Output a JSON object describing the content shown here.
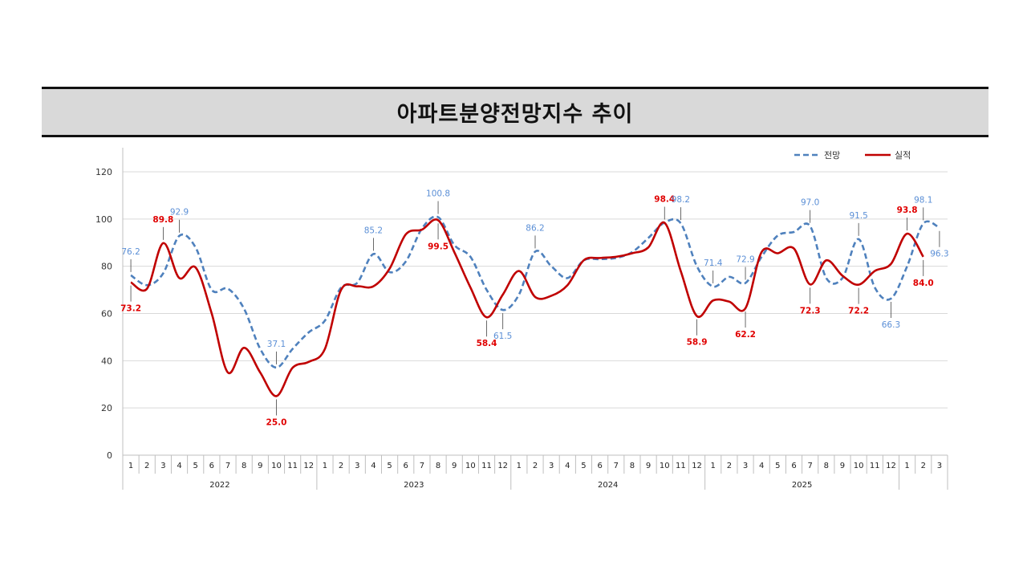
{
  "title": "아파트분양전망지수 추이",
  "chart_data": {
    "type": "line",
    "title": "",
    "xlabel": "",
    "ylabel": "",
    "ylim": [
      0,
      120
    ],
    "yticks": [
      0,
      20,
      40,
      60,
      80,
      100,
      120
    ],
    "grid": true,
    "legend_position": "top-right",
    "groups": [
      {
        "label": "2022",
        "months": [
          "1",
          "2",
          "3",
          "4",
          "5",
          "6",
          "7",
          "8",
          "9",
          "10",
          "11",
          "12"
        ]
      },
      {
        "label": "2023",
        "months": [
          "1",
          "2",
          "3",
          "4",
          "5",
          "6",
          "7",
          "8",
          "9",
          "10",
          "11",
          "12"
        ]
      },
      {
        "label": "2024",
        "months": [
          "1",
          "2",
          "3",
          "4",
          "5",
          "6",
          "7",
          "8",
          "9",
          "10",
          "11",
          "12"
        ]
      },
      {
        "label": "2025",
        "months": [
          "1",
          "2",
          "3",
          "4",
          "5",
          "6",
          "7",
          "8",
          "9",
          "10",
          "11",
          "12"
        ]
      },
      {
        "label": "",
        "months": [
          "1",
          "2",
          "3"
        ]
      }
    ],
    "series": [
      {
        "name": "전망",
        "color": "#4f81bd",
        "style": "dashed",
        "values": [
          76.2,
          72,
          77,
          92.9,
          88,
          70,
          70.5,
          62,
          45,
          37.1,
          45,
          52,
          57,
          71,
          73,
          85.2,
          77.5,
          82,
          96,
          100.8,
          89,
          84,
          70,
          61.5,
          68,
          86.2,
          80,
          75,
          82.5,
          83,
          83.5,
          86,
          92,
          98.5,
          98.2,
          80,
          71.4,
          75.5,
          72.9,
          84,
          93,
          94.5,
          97.0,
          75,
          75,
          91.5,
          71,
          66.3,
          80,
          98.1,
          96.3
        ]
      },
      {
        "name": "실적",
        "color": "#c00000",
        "style": "solid",
        "values": [
          73.2,
          70.5,
          89.8,
          75,
          79.5,
          60,
          35,
          45.5,
          35,
          25.0,
          37,
          39.5,
          45,
          70,
          71.5,
          71.5,
          79,
          93.5,
          95.5,
          99.5,
          86,
          71,
          58.4,
          68,
          78,
          67,
          67.5,
          72,
          82.5,
          83.5,
          84,
          85.5,
          88,
          98.4,
          78,
          58.9,
          65.5,
          65,
          62.2,
          86,
          85.5,
          87.5,
          72.3,
          82.5,
          76,
          72.2,
          78,
          81,
          93.8,
          84.0
        ]
      }
    ],
    "annotations": [
      {
        "series": 0,
        "index": 0,
        "text": "76.2",
        "position": "above"
      },
      {
        "series": 1,
        "index": 0,
        "text": "73.2",
        "position": "below"
      },
      {
        "series": 1,
        "index": 2,
        "text": "89.8",
        "position": "above"
      },
      {
        "series": 0,
        "index": 3,
        "text": "92.9",
        "position": "above"
      },
      {
        "series": 0,
        "index": 9,
        "text": "37.1",
        "position": "above"
      },
      {
        "series": 1,
        "index": 9,
        "text": "25.0",
        "position": "below"
      },
      {
        "series": 0,
        "index": 15,
        "text": "85.2",
        "position": "above"
      },
      {
        "series": 0,
        "index": 19,
        "text": "100.8",
        "position": "above"
      },
      {
        "series": 1,
        "index": 19,
        "text": "99.5",
        "position": "below"
      },
      {
        "series": 1,
        "index": 22,
        "text": "58.4",
        "position": "below"
      },
      {
        "series": 0,
        "index": 23,
        "text": "61.5",
        "position": "below"
      },
      {
        "series": 0,
        "index": 25,
        "text": "86.2",
        "position": "above"
      },
      {
        "series": 1,
        "index": 33,
        "text": "98.4",
        "position": "above"
      },
      {
        "series": 0,
        "index": 34,
        "text": "98.2",
        "position": "above"
      },
      {
        "series": 1,
        "index": 35,
        "text": "58.9",
        "position": "below"
      },
      {
        "series": 0,
        "index": 36,
        "text": "71.4",
        "position": "above"
      },
      {
        "series": 0,
        "index": 38,
        "text": "72.9",
        "position": "above"
      },
      {
        "series": 1,
        "index": 38,
        "text": "62.2",
        "position": "below"
      },
      {
        "series": 0,
        "index": 42,
        "text": "97.0",
        "position": "above"
      },
      {
        "series": 1,
        "index": 42,
        "text": "72.3",
        "position": "below"
      },
      {
        "series": 0,
        "index": 45,
        "text": "91.5",
        "position": "above"
      },
      {
        "series": 1,
        "index": 45,
        "text": "72.2",
        "position": "below"
      },
      {
        "series": 0,
        "index": 47,
        "text": "66.3",
        "position": "below"
      },
      {
        "series": 1,
        "index": 48,
        "text": "93.8",
        "position": "above"
      },
      {
        "series": 0,
        "index": 49,
        "text": "98.1",
        "position": "above"
      },
      {
        "series": 0,
        "index": 50,
        "text": "96.3",
        "position": "below"
      },
      {
        "series": 1,
        "index": 49,
        "text": "84.0",
        "position": "below"
      }
    ]
  }
}
